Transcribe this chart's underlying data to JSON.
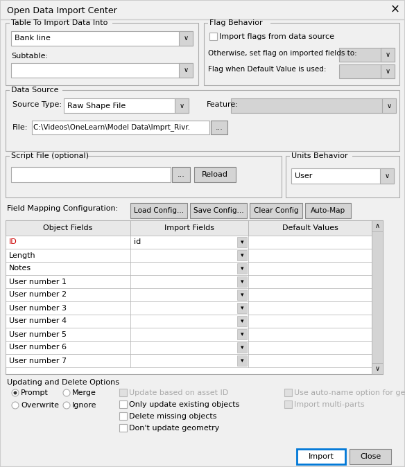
{
  "title": "Open Data Import Center",
  "bg_color": "#f0f0f0",
  "white": "#ffffff",
  "border_color": "#aaaaaa",
  "dark_border": "#888888",
  "light_gray": "#d4d4d4",
  "mid_gray": "#e8e8e8",
  "blue_highlight": "#0078d7",
  "red_text": "#cc0000",
  "disabled_gray": "#bbbbbb",
  "disabled_text": "#aaaaaa",
  "section_labels": {
    "table_import": "Table To Import Data Into",
    "flag_behavior": "Flag Behavior",
    "data_source": "Data Source",
    "script_file": "Script File (optional)",
    "units_behavior": "Units Behavior",
    "field_mapping": "Field Mapping Configuration:",
    "updating": "Updating and Delete Options"
  },
  "dropdowns": {
    "bank_line": "Bank line",
    "subtable_label": "Subtable:",
    "source_type_label": "Source Type:",
    "source_type_val": "Raw Shape File",
    "feature_label": "Feature:",
    "file_label": "File:",
    "file_val": "C:\\Videos\\OneLearn\\Model Data\\Imprt_Rivr.",
    "otherwise_label": "Otherwise, set flag on imported fields to:",
    "flag_default_label": "Flag when Default Value is used:",
    "units_val": "User"
  },
  "checkboxes": {
    "import_flags": "Import flags from data source",
    "update_asset": "Update based on asset ID",
    "only_update": "Only update existing objects",
    "delete_missing": "Delete missing objects",
    "dont_update_geo": "Don't update geometry",
    "auto_name": "Use auto-name option for generated nodes",
    "import_multi": "Import multi-parts"
  },
  "radio_buttons": {
    "prompt": "Prompt",
    "merge": "Merge",
    "overwrite": "Overwrite",
    "ignore": "Ignore"
  },
  "buttons": {
    "load_config": "Load Config...",
    "save_config": "Save Config...",
    "clear_config": "Clear Config",
    "auto_map": "Auto-Map",
    "reload": "Reload",
    "browse": "...",
    "import": "Import",
    "close": "Close"
  },
  "table_headers": [
    "Object Fields",
    "Import Fields",
    "Default Values"
  ],
  "table_rows": [
    [
      "ID",
      "id",
      ""
    ],
    [
      "Length",
      "",
      ""
    ],
    [
      "Notes",
      "",
      ""
    ],
    [
      "User number 1",
      "",
      ""
    ],
    [
      "User number 2",
      "",
      ""
    ],
    [
      "User number 3",
      "",
      ""
    ],
    [
      "User number 4",
      "",
      ""
    ],
    [
      "User number 5",
      "",
      ""
    ],
    [
      "User number 6",
      "",
      ""
    ],
    [
      "User number 7",
      "",
      ""
    ]
  ],
  "figw": 5.84,
  "figh": 6.74,
  "dpi": 100
}
